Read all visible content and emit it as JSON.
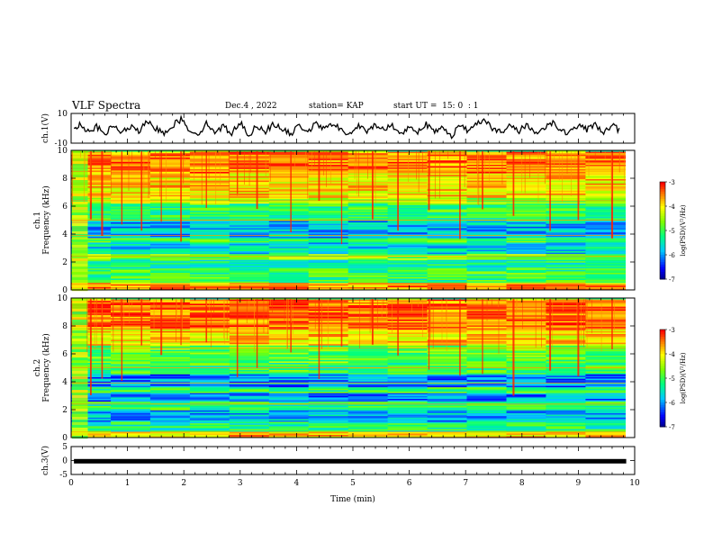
{
  "header": {
    "title": "VLF Spectra",
    "date": "Dec.4 , 2022",
    "station": "station= KAP",
    "start": "start UT =  15: 0  : 1"
  },
  "chart_data": [
    {
      "type": "line",
      "panel": "ch1-waveform",
      "ylabel": "ch.1(V)",
      "ylim": [
        -10,
        10
      ],
      "yticks": [
        "10",
        "-10"
      ],
      "xlim": [
        0,
        10
      ],
      "series": [
        {
          "values": [
            [
              0.05,
              -1
            ],
            [
              0.15,
              3
            ],
            [
              0.3,
              -2
            ],
            [
              0.45,
              1
            ],
            [
              0.6,
              -4
            ],
            [
              0.75,
              2
            ],
            [
              0.9,
              -3
            ],
            [
              1.05,
              1
            ],
            [
              1.2,
              -2
            ],
            [
              1.35,
              4
            ],
            [
              1.5,
              0
            ],
            [
              1.65,
              -3
            ],
            [
              1.8,
              2
            ],
            [
              1.95,
              6
            ],
            [
              2.1,
              -1
            ],
            [
              2.25,
              -4
            ],
            [
              2.4,
              3
            ],
            [
              2.55,
              -2
            ],
            [
              2.7,
              1
            ],
            [
              2.85,
              -3
            ],
            [
              3.0,
              4
            ],
            [
              3.15,
              -5
            ],
            [
              3.3,
              2
            ],
            [
              3.45,
              -2
            ],
            [
              3.6,
              3
            ],
            [
              3.75,
              -1
            ],
            [
              3.9,
              -4
            ],
            [
              4.05,
              2
            ],
            [
              4.2,
              -2
            ],
            [
              4.35,
              3
            ],
            [
              4.5,
              -1
            ],
            [
              4.65,
              4
            ],
            [
              4.8,
              -2
            ],
            [
              4.95,
              -4
            ],
            [
              5.1,
              2
            ],
            [
              5.25,
              -3
            ],
            [
              5.4,
              3
            ],
            [
              5.55,
              -1
            ],
            [
              5.7,
              2
            ],
            [
              5.85,
              -4
            ],
            [
              6.0,
              1
            ],
            [
              6.15,
              -2
            ],
            [
              6.3,
              3
            ],
            [
              6.45,
              -3
            ],
            [
              6.6,
              1
            ],
            [
              6.75,
              -5
            ],
            [
              6.9,
              2
            ],
            [
              7.05,
              -2
            ],
            [
              7.2,
              4
            ],
            [
              7.35,
              6
            ],
            [
              7.5,
              -1
            ],
            [
              7.65,
              -3
            ],
            [
              7.8,
              2
            ],
            [
              7.95,
              -2
            ],
            [
              8.1,
              3
            ],
            [
              8.25,
              -4
            ],
            [
              8.4,
              1
            ],
            [
              8.55,
              4
            ],
            [
              8.7,
              -2
            ],
            [
              8.85,
              -3
            ],
            [
              9.0,
              2
            ],
            [
              9.15,
              -1
            ],
            [
              9.3,
              3
            ],
            [
              9.45,
              -3
            ],
            [
              9.6,
              2
            ],
            [
              9.75,
              -2
            ]
          ]
        }
      ]
    },
    {
      "type": "heatmap",
      "panel": "ch1-spectrogram",
      "ylabel": "ch.1\nFrequency (kHz)",
      "ylim": [
        0,
        10
      ],
      "yticks": [
        "0",
        "2",
        "4",
        "6",
        "8",
        "10"
      ],
      "xlim": [
        0,
        10
      ],
      "data_extent_min": 9.83,
      "colorbar": {
        "label": "log(PSD)(V²/Hz)",
        "range": [
          -7,
          -3
        ],
        "ticks": [
          "-3",
          "-4",
          "-5",
          "-6",
          "-7"
        ]
      },
      "bands_khz": [
        [
          0,
          0.6,
          -3.6
        ],
        [
          0.6,
          1.6,
          -5.0
        ],
        [
          1.6,
          2.2,
          -5.3
        ],
        [
          2.2,
          2.6,
          -4.6
        ],
        [
          2.6,
          3.4,
          -5.6
        ],
        [
          3.4,
          3.8,
          -5.0
        ],
        [
          3.8,
          5.0,
          -5.8
        ],
        [
          5.0,
          6.2,
          -5.0
        ],
        [
          6.2,
          6.6,
          -4.4
        ],
        [
          6.6,
          8.4,
          -3.9
        ],
        [
          8.4,
          10,
          -3.5
        ]
      ],
      "spikes_min": [
        0.35,
        0.55,
        0.9,
        1.25,
        1.6,
        1.95,
        2.4,
        2.95,
        3.3,
        3.9,
        4.4,
        4.8,
        5.35,
        5.8,
        6.35,
        6.9,
        7.3,
        7.85,
        8.5,
        9.0,
        9.6
      ]
    },
    {
      "type": "heatmap",
      "panel": "ch2-spectrogram",
      "ylabel": "ch.2\nFrequency (kHz)",
      "ylim": [
        0,
        10
      ],
      "yticks": [
        "0",
        "2",
        "4",
        "6",
        "8",
        "10"
      ],
      "xlim": [
        0,
        10
      ],
      "data_extent_min": 9.83,
      "colorbar": {
        "label": "log(PSD)(V²/Hz)",
        "range": [
          -7,
          -3
        ],
        "ticks": [
          "-3",
          "-4",
          "-5",
          "-6",
          "-7"
        ]
      },
      "bands_khz": [
        [
          0,
          0.5,
          -3.8
        ],
        [
          0.5,
          1.2,
          -5.2
        ],
        [
          1.2,
          2.0,
          -5.8
        ],
        [
          2.0,
          2.6,
          -5.1
        ],
        [
          2.6,
          3.2,
          -6.0
        ],
        [
          3.2,
          3.6,
          -5.0
        ],
        [
          3.6,
          4.6,
          -6.0
        ],
        [
          4.6,
          5.4,
          -5.0
        ],
        [
          5.4,
          6.6,
          -4.8
        ],
        [
          6.6,
          7.8,
          -3.9
        ],
        [
          7.8,
          10,
          -3.4
        ]
      ],
      "spikes_min": [
        0.35,
        0.55,
        0.9,
        1.25,
        1.6,
        1.95,
        2.4,
        2.95,
        3.3,
        3.9,
        4.4,
        4.8,
        5.35,
        5.8,
        6.35,
        6.9,
        7.3,
        7.85,
        8.5,
        9.0,
        9.6
      ]
    },
    {
      "type": "line",
      "panel": "ch3-waveform",
      "ylabel": "ch.3(V)",
      "ylim": [
        -5,
        5
      ],
      "yticks": [
        "5",
        "0",
        "-5"
      ],
      "xlim": [
        0,
        10
      ],
      "xlabel": "Time (min)",
      "xticks": [
        "0",
        "1",
        "2",
        "3",
        "4",
        "5",
        "6",
        "7",
        "8",
        "9",
        "10"
      ],
      "series": [
        {
          "level_v": 0.1,
          "thickness_v": 0.9,
          "x_range": [
            0.05,
            9.85
          ]
        }
      ]
    }
  ]
}
